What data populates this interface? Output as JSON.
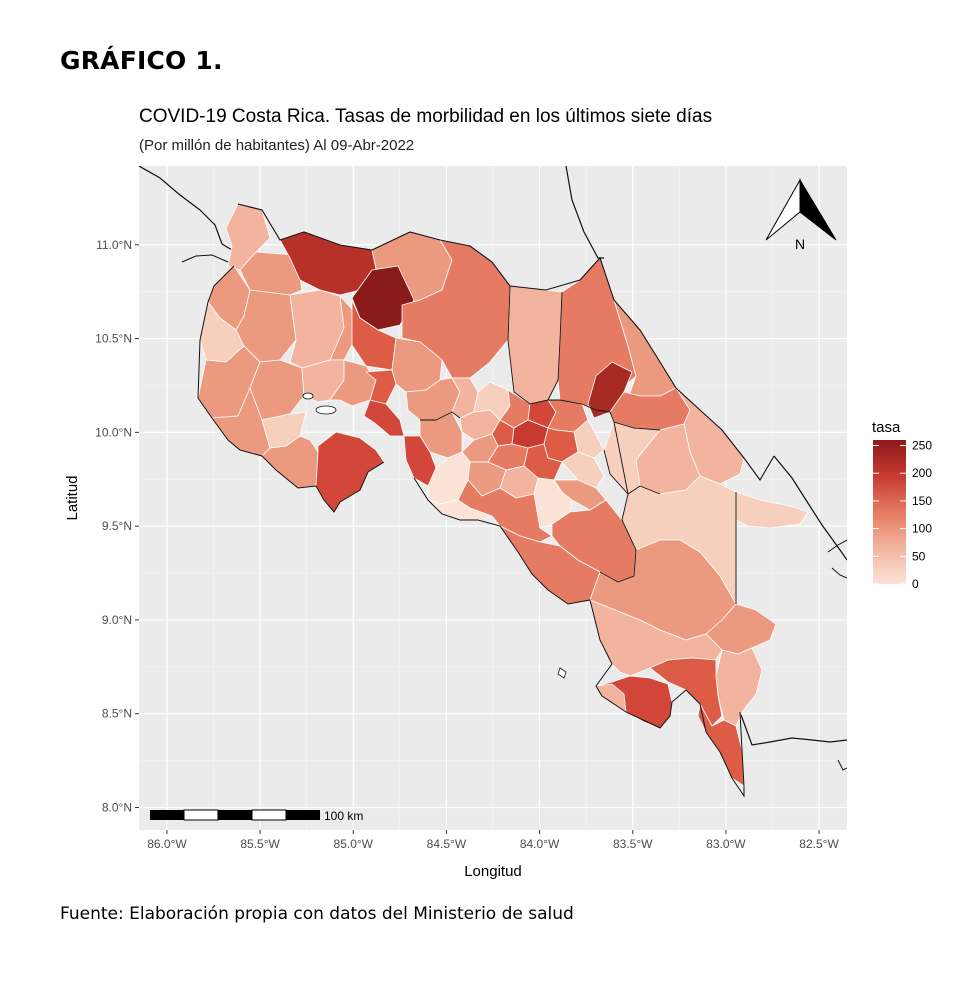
{
  "heading": "GRÁFICO 1.",
  "title": "COVID-19 Costa Rica. Tasas de morbilidad en los últimos siete días",
  "subtitle": "(Por millón de habitantes) Al 09-Abr-2022",
  "source": "Fuente: Elaboración propia con datos del Ministerio de salud",
  "north_arrow": {
    "label": "N",
    "icon": "north-arrow-icon"
  },
  "scale_bar": {
    "label": "100 km"
  },
  "legend": {
    "title": "tasa",
    "ticks": [
      "250",
      "200",
      "150",
      "100",
      "50",
      "0"
    ],
    "tick_values": [
      250,
      200,
      150,
      100,
      50,
      0
    ],
    "min": 0,
    "max": 260,
    "color_low": "#fbe3d8",
    "color_high": "#8b1a1a"
  },
  "chart_data": {
    "type": "choropleth",
    "xlabel": "Longitud",
    "ylabel": "Latitud",
    "xlim": [
      -86.15,
      -82.35
    ],
    "ylim": [
      7.88,
      11.42
    ],
    "x_ticks": [
      -86.0,
      -85.5,
      -85.0,
      -84.5,
      -84.0,
      -83.5,
      -83.0,
      -82.5
    ],
    "x_tick_labels": [
      "86.0°W",
      "85.5°W",
      "85.0°W",
      "84.5°W",
      "84.0°W",
      "83.5°W",
      "83.0°W",
      "82.5°W"
    ],
    "y_ticks": [
      8.0,
      8.5,
      9.0,
      9.5,
      10.0,
      10.5,
      11.0
    ],
    "y_tick_labels": [
      "8.0°N",
      "8.5°N",
      "9.0°N",
      "9.5°N",
      "10.0°N",
      "10.5°N",
      "11.0°N"
    ],
    "grid": true,
    "panel_background": "#ebebeb",
    "legend_position": "right",
    "colors": [
      "#fbe3d8",
      "#f7cfbd",
      "#f2b49e",
      "#ec9a7f",
      "#e57b62",
      "#dc5c46",
      "#c73a31",
      "#a72a25",
      "#8b1a1a"
    ]
  }
}
